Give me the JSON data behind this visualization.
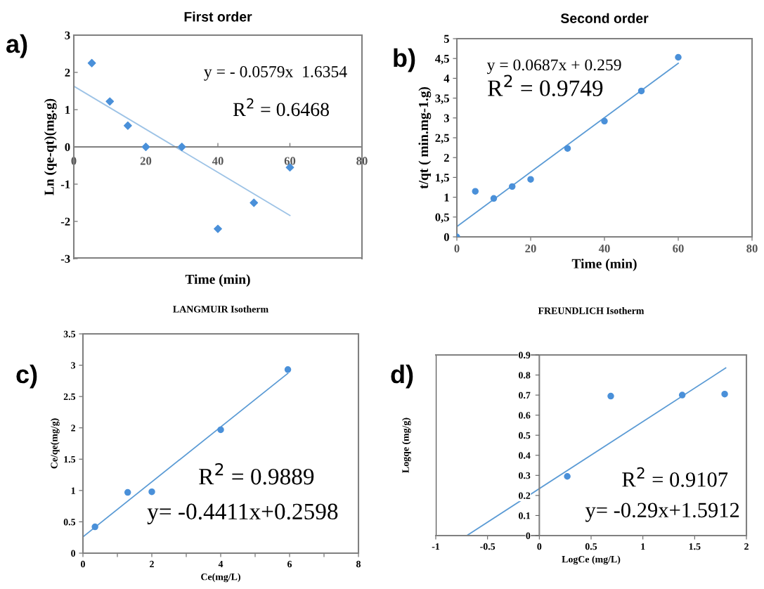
{
  "chart_data": [
    {
      "type": "scatter",
      "title": "First order",
      "xlabel": "Time (min)",
      "ylabel": "Ln (qe-qt)(mg.g)",
      "xlim": [
        0,
        80
      ],
      "ylim": [
        -3,
        3
      ],
      "xticks": [
        0,
        20,
        40,
        60,
        80
      ],
      "yticks": [
        -3,
        -2,
        -1,
        0,
        1,
        2,
        3
      ],
      "grid": false,
      "legend": false,
      "annotations": [
        "a)",
        "y = - 0.0579x  1.6354",
        "R$^{2}$ = 0.6468"
      ],
      "series": [
        {
          "type": "scatter",
          "color": "#4a90d9",
          "marker": "diamond",
          "x": [
            5,
            10,
            15,
            20,
            30,
            40,
            50,
            60
          ],
          "values": [
            2.25,
            1.22,
            0.57,
            0.0,
            0.0,
            -2.2,
            -1.5,
            -0.55
          ]
        },
        {
          "type": "line",
          "color": "#9dc3e6",
          "x": [
            0,
            60
          ],
          "values": [
            1.63,
            -1.84
          ]
        }
      ]
    },
    {
      "type": "scatter",
      "title": "Second order",
      "xlabel": "Time (min)",
      "ylabel": "t/qt ( min.mg-1.g)",
      "xlim": [
        0,
        80
      ],
      "ylim": [
        0,
        5
      ],
      "xticks": [
        0,
        20,
        40,
        60,
        80
      ],
      "yticks": [
        0,
        {
          "value": 0.5,
          "label": "0,5"
        },
        1,
        {
          "value": 1.5,
          "label": "1,5"
        },
        2,
        {
          "value": 2.5,
          "label": "2,5"
        },
        3,
        {
          "value": 3.5,
          "label": "3,5"
        },
        4,
        {
          "value": 4.5,
          "label": "4,5"
        },
        5
      ],
      "grid": false,
      "legend": false,
      "annotations": [
        "b)",
        "y = 0.0687x + 0.259",
        "R$^{2}$ = 0.9749"
      ],
      "series": [
        {
          "type": "scatter",
          "color": "#4a90d9",
          "marker": "circle",
          "x": [
            0,
            5,
            10,
            15,
            20,
            30,
            40,
            50,
            60
          ],
          "values": [
            0,
            1.15,
            0.97,
            1.27,
            1.45,
            2.23,
            2.92,
            3.68,
            4.53
          ]
        },
        {
          "type": "line",
          "color": "#5b9bd5",
          "x": [
            0,
            60
          ],
          "values": [
            0.26,
            4.38
          ]
        }
      ]
    },
    {
      "type": "scatter",
      "title": "LANGMUIR Isotherm",
      "xlabel": "Ce(mg/L)",
      "ylabel": "Ce/qe(mg/g)",
      "xlim": [
        0,
        8
      ],
      "ylim": [
        0,
        3.5
      ],
      "xticks": [
        0,
        {
          "value": 1,
          "label": null
        },
        2,
        {
          "value": 3,
          "label": null
        },
        4,
        {
          "value": 5,
          "label": null
        },
        6,
        {
          "value": 7,
          "label": null
        },
        8
      ],
      "yticks": [
        0,
        0.5,
        1,
        1.5,
        2,
        2.5,
        3,
        3.5
      ],
      "grid": false,
      "legend": false,
      "annotations": [
        "c)",
        "R$^{2}$ = 0.9889",
        "y= -0.4411x+0.2598"
      ],
      "series": [
        {
          "type": "scatter",
          "color": "#4a90d9",
          "marker": "circle",
          "x": [
            0.35,
            1.3,
            2.0,
            4.0,
            5.95
          ],
          "values": [
            0.42,
            0.97,
            0.98,
            1.97,
            2.93
          ]
        },
        {
          "type": "line",
          "color": "#5b9bd5",
          "x": [
            0,
            5.95
          ],
          "values": [
            0.26,
            2.87
          ]
        }
      ]
    },
    {
      "type": "scatter",
      "title": "FREUNDLICH Isotherm",
      "xlabel": "LogCe (mg/L)",
      "ylabel": "Logqe (mg/g)",
      "xlim": [
        -1,
        2
      ],
      "ylim": [
        0,
        0.9
      ],
      "xticks": [
        -1,
        -0.5,
        0,
        0.5,
        1,
        1.5,
        2
      ],
      "yticks": [
        0,
        0.1,
        0.2,
        0.3,
        0.4,
        0.5,
        0.6,
        0.7,
        0.8,
        0.9
      ],
      "grid": false,
      "legend": false,
      "annotations": [
        "d)",
        "R$^{2}$ = 0.9107",
        "y= -0.29x+1.5912"
      ],
      "series": [
        {
          "type": "scatter",
          "color": "#4a90d9",
          "marker": "circle",
          "x": [
            0.27,
            0.69,
            1.38,
            1.79
          ],
          "values": [
            0.295,
            0.695,
            0.7,
            0.705
          ]
        },
        {
          "type": "line",
          "color": "#5b9bd5",
          "x": [
            -0.7,
            1.8
          ],
          "values": [
            0,
            0.835
          ]
        }
      ]
    }
  ]
}
